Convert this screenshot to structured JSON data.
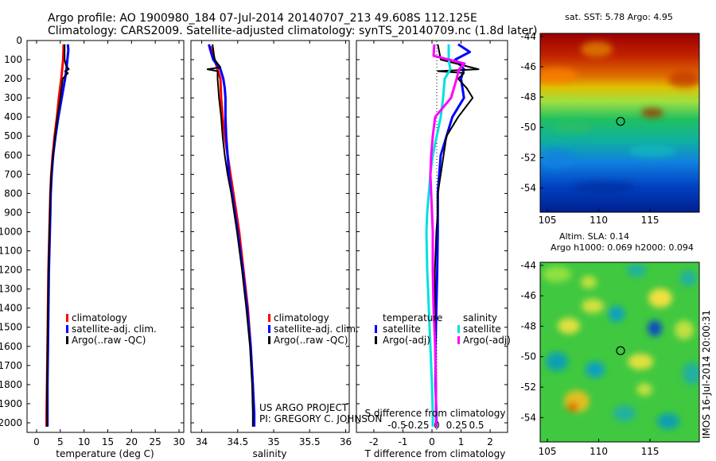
{
  "header": {
    "line1": "Argo profile: AO 1900980_184 07-Jul-2014 20140707_213 49.608S 112.125E",
    "line2": "Climatology: CARS2009. Satellite-adjusted climatology: synTS_20140709.nc (1.8d later)"
  },
  "colors": {
    "clim": "#ff0000",
    "sat": "#0000ff",
    "argo": "#000000",
    "sat_sal": "#00e0e0",
    "argo_sal": "#ff00ff"
  },
  "depth_ticks": [
    0,
    100,
    200,
    300,
    400,
    500,
    600,
    700,
    800,
    900,
    1000,
    1100,
    1200,
    1300,
    1400,
    1500,
    1600,
    1700,
    1800,
    1900,
    2000
  ],
  "chart_data": [
    {
      "type": "line",
      "name": "temperature-profile",
      "xlabel": "temperature (deg C)",
      "ylabel": "",
      "xlim": [
        -2,
        31
      ],
      "ylim": [
        2050,
        0
      ],
      "xticks": [
        0,
        5,
        10,
        15,
        20,
        25,
        30
      ],
      "legend": [
        "climatology",
        "satellite-adj. clim.",
        "Argo(..raw -QC)"
      ],
      "series": [
        {
          "name": "climatology",
          "color": "#ff0000",
          "width": 3,
          "depth": [
            20,
            100,
            200,
            300,
            400,
            500,
            600,
            700,
            800,
            900,
            1000,
            1200,
            1400,
            1600,
            1800,
            1950,
            2020
          ],
          "values": [
            5.7,
            5.6,
            5.2,
            4.7,
            4.3,
            3.8,
            3.4,
            3.1,
            2.9,
            2.8,
            2.7,
            2.5,
            2.4,
            2.3,
            2.2,
            2.1,
            2.1
          ]
        },
        {
          "name": "satellite-adj. clim.",
          "color": "#0000ff",
          "width": 3,
          "depth": [
            20,
            50,
            100,
            150,
            200,
            300,
            400,
            500,
            600,
            700,
            800,
            900,
            1000,
            1200,
            1400,
            1600,
            1800,
            1950,
            2020
          ],
          "values": [
            6.6,
            6.7,
            6.5,
            6.3,
            6.0,
            5.3,
            4.6,
            4.0,
            3.5,
            3.2,
            3.0,
            2.9,
            2.8,
            2.6,
            2.5,
            2.4,
            2.3,
            2.3,
            2.3
          ]
        },
        {
          "name": "Argo(..raw -QC)",
          "color": "#000000",
          "width": 2,
          "depth": [
            20,
            100,
            130,
            150,
            160,
            170,
            200,
            300,
            400,
            500,
            600,
            700,
            800,
            900,
            1000,
            1200,
            1400,
            1600,
            1800,
            1950,
            2020
          ],
          "values": [
            5.9,
            5.9,
            6.2,
            6.8,
            6.0,
            6.6,
            5.5,
            5.0,
            4.4,
            3.9,
            3.5,
            3.1,
            2.9,
            2.8,
            2.7,
            2.5,
            2.4,
            2.3,
            2.2,
            2.2,
            2.2
          ]
        }
      ]
    },
    {
      "type": "line",
      "name": "salinity-profile",
      "xlabel": "salinity",
      "ylabel": "",
      "xlim": [
        33.85,
        36.05
      ],
      "ylim": [
        2050,
        0
      ],
      "xticks": [
        34,
        34.5,
        35,
        35.5,
        36
      ],
      "legend": [
        "climatology",
        "satellite-adj. clim.",
        "Argo(..raw -QC)"
      ],
      "series": [
        {
          "name": "climatology",
          "color": "#ff0000",
          "width": 3,
          "depth": [
            30,
            100,
            150,
            200,
            300,
            400,
            500,
            600,
            700,
            800,
            900,
            1000,
            1200,
            1400,
            1600,
            1800,
            1950,
            2020
          ],
          "values": [
            34.12,
            34.18,
            34.22,
            34.26,
            34.27,
            34.29,
            34.32,
            34.36,
            34.4,
            34.44,
            34.48,
            34.52,
            34.58,
            34.64,
            34.68,
            34.71,
            34.72,
            34.72
          ]
        },
        {
          "name": "satellite-adj. clim.",
          "color": "#0000ff",
          "width": 3,
          "depth": [
            20,
            50,
            100,
            150,
            200,
            250,
            300,
            400,
            500,
            600,
            700,
            800,
            900,
            1000,
            1200,
            1400,
            1600,
            1800,
            1950,
            2020
          ],
          "values": [
            34.1,
            34.12,
            34.16,
            34.26,
            34.3,
            34.32,
            34.33,
            34.33,
            34.34,
            34.36,
            34.38,
            34.42,
            34.46,
            34.5,
            34.57,
            34.63,
            34.68,
            34.71,
            34.73,
            34.73
          ]
        },
        {
          "name": "Argo(..raw -QC)",
          "color": "#000000",
          "width": 2,
          "depth": [
            20,
            100,
            140,
            150,
            160,
            200,
            300,
            400,
            500,
            600,
            700,
            800,
            900,
            1000,
            1200,
            1400,
            1600,
            1800,
            1950,
            2020
          ],
          "values": [
            34.15,
            34.18,
            34.26,
            34.08,
            34.22,
            34.22,
            34.24,
            34.27,
            34.29,
            34.32,
            34.36,
            34.41,
            34.45,
            34.49,
            34.56,
            34.62,
            34.67,
            34.7,
            34.71,
            34.71
          ]
        }
      ]
    },
    {
      "type": "line",
      "name": "difference-profile",
      "xlabel": "T difference from climatology",
      "xlabel_top": "S difference from climatology",
      "xlim": [
        -2.6,
        2.6
      ],
      "ylim": [
        2050,
        0
      ],
      "xticks": [
        -2,
        -1,
        0,
        1,
        2
      ],
      "xticks_top": [
        -0.5,
        -0.25,
        0,
        0.25,
        0.5
      ],
      "legend_title_left": "temperature",
      "legend_title_right": "salinity",
      "legend": [
        "satellite",
        "Argo(-adj)",
        "satellite",
        "Argo(-adj)"
      ],
      "series": [
        {
          "name": "T satellite",
          "color": "#0000ff",
          "width": 3,
          "depth": [
            20,
            60,
            100,
            150,
            200,
            300,
            400,
            500,
            600,
            700,
            800,
            900,
            1000,
            1200,
            1400,
            1600,
            1800,
            1950,
            2020
          ],
          "values": [
            0.9,
            1.3,
            0.8,
            1.1,
            1.0,
            1.1,
            0.7,
            0.5,
            0.3,
            0.25,
            0.2,
            0.2,
            0.2,
            0.18,
            0.15,
            0.12,
            0.12,
            0.15,
            0.15
          ]
        },
        {
          "name": "T Argo(-adj)",
          "color": "#000000",
          "width": 2,
          "depth": [
            20,
            100,
            150,
            160,
            170,
            200,
            250,
            300,
            400,
            500,
            600,
            700,
            800,
            900,
            1000,
            1200,
            1400,
            1600,
            1800,
            1950,
            2020
          ],
          "values": [
            0.2,
            0.3,
            1.6,
            0.2,
            1.1,
            0.9,
            1.2,
            1.4,
            0.9,
            0.5,
            0.4,
            0.3,
            0.2,
            0.2,
            0.15,
            0.1,
            0.1,
            0.12,
            0.12,
            0.15,
            0.15
          ]
        },
        {
          "name": "S satellite",
          "color": "#00e0e0",
          "width": 3,
          "depth": [
            20,
            100,
            150,
            200,
            300,
            400,
            500,
            600,
            700,
            800,
            900,
            1000,
            1200,
            1400,
            1600,
            1800,
            1950,
            2020
          ],
          "values": [
            0.15,
            0.15,
            0.17,
            0.1,
            0.08,
            0.05,
            0.0,
            -0.05,
            -0.08,
            -0.1,
            -0.12,
            -0.13,
            -0.12,
            -0.1,
            -0.08,
            -0.06,
            -0.05,
            -0.05
          ]
        },
        {
          "name": "S Argo(-adj)",
          "color": "#ff00ff",
          "width": 3,
          "depth": [
            20,
            80,
            120,
            150,
            200,
            300,
            400,
            500,
            600,
            700,
            800,
            900,
            1000,
            1200,
            1400,
            1600,
            1800,
            1950,
            2020
          ],
          "values": [
            -0.03,
            -0.04,
            0.35,
            0.28,
            0.25,
            0.18,
            -0.02,
            -0.05,
            -0.07,
            -0.08,
            -0.07,
            -0.06,
            -0.05,
            -0.05,
            -0.04,
            -0.02,
            -0.01,
            -0.01,
            -0.01
          ]
        }
      ]
    },
    {
      "type": "heatmap",
      "name": "sst-map",
      "title": "sat. SST: 5.78 Argo: 4.95",
      "xlim": [
        104.3,
        119.8
      ],
      "ylim": [
        -55.6,
        -43.8
      ],
      "xticks": [
        105,
        110,
        115
      ],
      "yticks": [
        -44,
        -46,
        -48,
        -50,
        -52,
        -54
      ],
      "marker": {
        "lon": 112.125,
        "lat": -49.608
      }
    },
    {
      "type": "heatmap",
      "name": "sla-map",
      "title": "Altim. SLA: 0.14",
      "subtitle": "Argo h1000: 0.069 h2000: 0.094",
      "xlim": [
        104.3,
        119.8
      ],
      "ylim": [
        -55.6,
        -43.8
      ],
      "xticks": [
        105,
        110,
        115
      ],
      "yticks": [
        -44,
        -46,
        -48,
        -50,
        -52,
        -54
      ],
      "marker": {
        "lon": 112.125,
        "lat": -49.608
      }
    }
  ],
  "footer": {
    "project": "US ARGO PROJECT",
    "pi": "PI: GREGORY C. JOHNSON",
    "timestamp": "IMOS 16-Jul-2014 20:00:31"
  }
}
